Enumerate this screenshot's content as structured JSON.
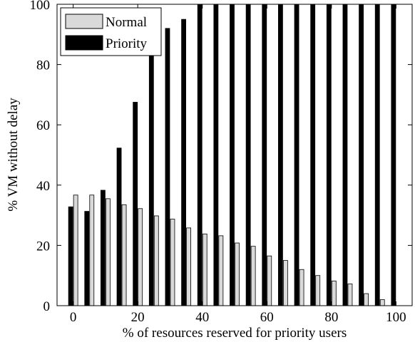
{
  "chart_data": {
    "type": "bar",
    "xlabel": "% of resources reserved for priority users",
    "ylabel": "% VM without delay",
    "categories": [
      0,
      5,
      10,
      15,
      20,
      25,
      30,
      35,
      40,
      45,
      50,
      55,
      60,
      65,
      70,
      75,
      80,
      85,
      90,
      95,
      100
    ],
    "x_ticks": [
      0,
      20,
      40,
      60,
      80,
      100
    ],
    "y_ticks": [
      0,
      20,
      40,
      60,
      80,
      100
    ],
    "xlim": [
      -5,
      105
    ],
    "ylim": [
      0,
      100
    ],
    "grid": false,
    "legend_position": "top-left",
    "series": [
      {
        "name": "Priority",
        "color": "#000000",
        "values": [
          32.8,
          31.3,
          38.3,
          52.3,
          67.5,
          83.3,
          92.0,
          95.0,
          100,
          100,
          100,
          100,
          100,
          100,
          100,
          100,
          100,
          100,
          100,
          100,
          100
        ]
      },
      {
        "name": "Normal",
        "color": "#d9d9d9",
        "values": [
          36.7,
          36.7,
          35.5,
          33.5,
          32.2,
          29.8,
          28.7,
          25.8,
          23.8,
          23.2,
          20.8,
          19.7,
          16.5,
          15.0,
          12.0,
          10.0,
          8.2,
          7.2,
          4.0,
          2.0,
          null
        ]
      }
    ]
  }
}
